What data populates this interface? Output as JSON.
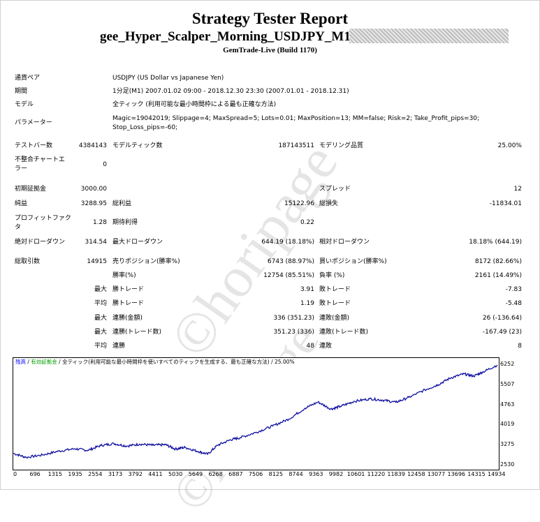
{
  "report": {
    "title": "Strategy Tester Report",
    "ea_name": "gee_Hyper_Scalper_Morning_USDJPY_M1",
    "server": "GemTrade-Live (Build 1170)"
  },
  "summary": {
    "symbol_label": "通貨ペア",
    "symbol_value": "USDJPY (US Dollar vs Japanese Yen)",
    "period_label": "期間",
    "period_value": "1分足(M1) 2007.01.02 09:00 - 2018.12.30 23:30 (2007.01.01 - 2018.12.31)",
    "model_label": "モデル",
    "model_value": "全ティック (利用可能な最小時間枠による最も正確な方法)",
    "params_label": "パラメーター",
    "params_line1": "Magic=19042019; Slippage=4; MaxSpread=5; Lots=0.01; MaxPosition=13; MM=false; Risk=2; Take_Profit_pips=30;",
    "params_line2": "Stop_Loss_pips=-60;"
  },
  "stats": {
    "bars_label": "テストバー数",
    "bars_value": "4384143",
    "ticks_label": "モデルティック数",
    "ticks_value": "187143511",
    "quality_label": "モデリング品質",
    "quality_value": "25.00%",
    "mismatch_label_1": "不整合チャートエ",
    "mismatch_label_2": "ラー",
    "mismatch_value": "0",
    "deposit_label": "初期証拠金",
    "deposit_value": "3000.00",
    "spread_label": "スプレッド",
    "spread_value": "12",
    "net_label": "純益",
    "net_value": "3288.95",
    "gross_profit_label": "総利益",
    "gross_profit_value": "15122.96",
    "gross_loss_label": "総損失",
    "gross_loss_value": "-11834.01",
    "pf_label_1": "プロフィットファク",
    "pf_label_2": "タ",
    "pf_value": "1.28",
    "payoff_label": "期待利得",
    "payoff_value": "0.22",
    "abs_dd_label": "絶対ドローダウン",
    "abs_dd_value": "314.54",
    "max_dd_label": "最大ドローダウン",
    "max_dd_value": "644.19 (18.18%)",
    "rel_dd_label": "相対ドローダウン",
    "rel_dd_value": "18.18% (644.19)",
    "trades_label": "総取引数",
    "trades_value": "14915",
    "short_label": "売りポジション(勝率%)",
    "short_value": "6743 (88.97%)",
    "long_label": "買いポジション(勝率%)",
    "long_value": "8172 (82.66%)",
    "win_label": "勝率(%)",
    "win_value": "12754 (85.51%)",
    "loss_label": "負率 (%)",
    "loss_value": "2161 (14.49%)",
    "max_word": "最大",
    "avg_word": "平均",
    "largest_win_label": "勝トレード",
    "largest_win_value": "3.91",
    "largest_loss_label": "敗トレード",
    "largest_loss_value": "-7.83",
    "avg_win_label": "勝トレード",
    "avg_win_value": "1.19",
    "avg_loss_label": "敗トレード",
    "avg_loss_value": "-5.48",
    "cons_wins_money_label": "連勝(金額)",
    "cons_wins_money_value": "336 (351.23)",
    "cons_loss_money_label": "連敗(金額)",
    "cons_loss_money_value": "26 (-136.64)",
    "cons_profit_label": "連勝(トレード数)",
    "cons_profit_value": "351.23 (336)",
    "cons_lossamt_label": "連敗(トレード数)",
    "cons_lossamt_value": "-167.49 (23)",
    "avg_cons_wins_label": "連勝",
    "avg_cons_wins_value": "48",
    "avg_cons_loss_label": "連敗",
    "avg_cons_loss_value": "8"
  },
  "watermark": "©horipage",
  "chart_header": {
    "balance": "残高",
    "sep1": " / ",
    "margin": "有効証拠金",
    "rest": " / 全ティック(利用可能な最小時間枠を使いすべてのティックを生成する、最も正確な方法) / 25.00%",
    "balance_color": "#0000ff",
    "margin_color": "#00a000"
  },
  "chart_data": {
    "type": "line",
    "ylim": [
      2530,
      6252
    ],
    "xlim": [
      0,
      14934
    ],
    "yticks": [
      "6252",
      "5507",
      "4763",
      "4019",
      "3275",
      "2530"
    ],
    "xticks": [
      "0",
      "696",
      "1315",
      "1935",
      "2554",
      "3173",
      "3792",
      "4411",
      "5030",
      "5649",
      "6268",
      "6887",
      "7506",
      "8125",
      "8744",
      "9363",
      "9982",
      "10601",
      "11220",
      "11839",
      "12458",
      "13077",
      "13696",
      "14315",
      "14934"
    ],
    "line_color": "#1010a0",
    "series": [
      {
        "values": [
          [
            0,
            2980
          ],
          [
            400,
            2830
          ],
          [
            900,
            2920
          ],
          [
            1400,
            3060
          ],
          [
            1900,
            3150
          ],
          [
            2300,
            3090
          ],
          [
            2700,
            3270
          ],
          [
            3100,
            3340
          ],
          [
            3500,
            3250
          ],
          [
            3900,
            3320
          ],
          [
            4300,
            3280
          ],
          [
            4700,
            3300
          ],
          [
            5000,
            3140
          ],
          [
            5300,
            3200
          ],
          [
            5700,
            3050
          ],
          [
            6000,
            2950
          ],
          [
            6300,
            3280
          ],
          [
            6700,
            3480
          ],
          [
            7000,
            3560
          ],
          [
            7500,
            3760
          ],
          [
            8000,
            3990
          ],
          [
            8500,
            4250
          ],
          [
            9000,
            4650
          ],
          [
            9400,
            4880
          ],
          [
            9800,
            4620
          ],
          [
            10100,
            4720
          ],
          [
            10500,
            4900
          ],
          [
            11000,
            5000
          ],
          [
            11400,
            4950
          ],
          [
            11800,
            4870
          ],
          [
            12200,
            5050
          ],
          [
            12700,
            5330
          ],
          [
            13100,
            5520
          ],
          [
            13500,
            5780
          ],
          [
            13900,
            5920
          ],
          [
            14200,
            5840
          ],
          [
            14500,
            6000
          ],
          [
            14934,
            6252
          ]
        ]
      }
    ]
  }
}
